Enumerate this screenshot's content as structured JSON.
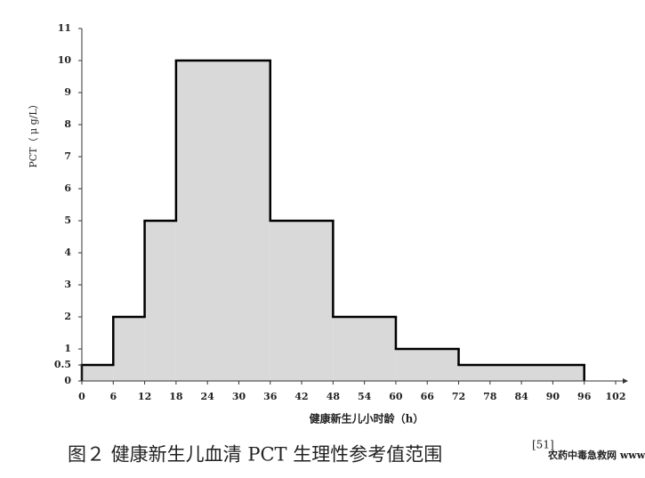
{
  "chart_data": {
    "type": "histogram",
    "title": "图２  健康新生儿血清 PCT 生理性参考值范围",
    "title_ref": "[51]",
    "xlabel": "健康新生儿小时龄（h）",
    "ylabel": "PCT（ μ g/L）",
    "watermark": "农药中毒急救网 www.nyzdjj.com",
    "bins": [
      0,
      6,
      12,
      18,
      36,
      48,
      60,
      72,
      96
    ],
    "values": [
      0.5,
      2,
      5,
      10,
      5,
      2,
      1,
      0.5
    ],
    "color": "#d9d9d9",
    "edge_color": "#000000",
    "xlim": [
      0,
      102
    ],
    "xticks": [
      0,
      6,
      12,
      18,
      24,
      30,
      36,
      42,
      48,
      54,
      60,
      66,
      72,
      78,
      84,
      90,
      96,
      102
    ],
    "ylim": [
      0,
      11
    ],
    "yticks": [
      0,
      0.5,
      1,
      2,
      3,
      4,
      5,
      6,
      7,
      8,
      9,
      10,
      11
    ]
  }
}
